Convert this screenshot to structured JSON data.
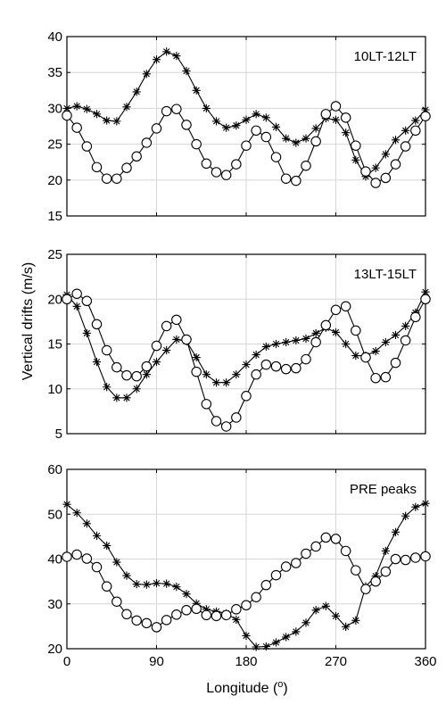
{
  "figure": {
    "ylabel": "Vertical drifts (m/s)",
    "xlabel_prefix": "Longitude (",
    "xlabel_sup": "o",
    "xlabel_suffix": ")"
  },
  "chart_data": [
    {
      "type": "line",
      "panel_label": "10LT-12LT",
      "xlim": [
        0,
        360
      ],
      "ylim": [
        15,
        40
      ],
      "xticks": [
        0,
        90,
        180,
        270,
        360
      ],
      "yticks": [
        15,
        20,
        25,
        30,
        35,
        40
      ],
      "grid": true,
      "x": [
        0,
        10,
        20,
        30,
        40,
        50,
        60,
        70,
        80,
        90,
        100,
        110,
        120,
        130,
        140,
        150,
        160,
        170,
        180,
        190,
        200,
        210,
        220,
        230,
        240,
        250,
        260,
        270,
        280,
        290,
        300,
        310,
        320,
        330,
        340,
        350,
        360
      ],
      "series": [
        {
          "marker": "star",
          "values": [
            30.0,
            30.3,
            29.9,
            29.2,
            28.3,
            28.2,
            30.2,
            32.3,
            34.8,
            36.8,
            37.9,
            37.3,
            35.2,
            32.5,
            30.0,
            28.2,
            27.3,
            27.6,
            28.4,
            29.2,
            28.7,
            27.4,
            25.8,
            25.2,
            25.8,
            27.2,
            28.6,
            28.4,
            26.6,
            22.8,
            20.5,
            21.7,
            23.6,
            25.6,
            26.9,
            28.3,
            29.8
          ]
        },
        {
          "marker": "circle",
          "values": [
            29.0,
            27.3,
            24.7,
            21.8,
            20.2,
            20.2,
            21.7,
            23.3,
            25.2,
            27.2,
            29.6,
            29.9,
            27.7,
            25.0,
            22.3,
            21.1,
            20.7,
            22.2,
            24.8,
            26.9,
            26.0,
            23.2,
            20.2,
            19.9,
            22.0,
            25.4,
            29.2,
            30.3,
            28.7,
            24.8,
            21.2,
            19.6,
            20.3,
            22.2,
            24.7,
            26.9,
            28.9
          ]
        }
      ]
    },
    {
      "type": "line",
      "panel_label": "13LT-15LT",
      "xlim": [
        0,
        360
      ],
      "ylim": [
        5,
        25
      ],
      "xticks": [
        0,
        90,
        180,
        270,
        360
      ],
      "yticks": [
        5,
        10,
        15,
        20,
        25
      ],
      "grid": true,
      "x": [
        0,
        10,
        20,
        30,
        40,
        50,
        60,
        70,
        80,
        90,
        100,
        110,
        120,
        130,
        140,
        150,
        160,
        170,
        180,
        190,
        200,
        210,
        220,
        230,
        240,
        250,
        260,
        270,
        280,
        290,
        300,
        310,
        320,
        330,
        340,
        350,
        360
      ],
      "series": [
        {
          "marker": "star",
          "values": [
            20.5,
            19.2,
            16.2,
            13.0,
            10.2,
            9.0,
            9.0,
            10.0,
            11.6,
            13.0,
            14.3,
            15.5,
            15.3,
            13.5,
            11.6,
            10.7,
            10.7,
            11.6,
            12.7,
            13.8,
            14.7,
            15.0,
            15.2,
            15.4,
            15.6,
            16.2,
            16.8,
            16.3,
            15.0,
            13.7,
            13.7,
            14.2,
            15.2,
            16.0,
            17.0,
            18.5,
            20.8
          ]
        },
        {
          "marker": "circle",
          "values": [
            20.0,
            20.6,
            19.8,
            17.2,
            14.3,
            12.4,
            11.5,
            11.4,
            12.5,
            14.8,
            17.0,
            17.7,
            15.5,
            11.9,
            8.3,
            6.4,
            5.8,
            6.8,
            9.2,
            11.6,
            12.7,
            12.5,
            12.2,
            12.3,
            13.3,
            15.2,
            17.1,
            18.8,
            19.2,
            16.5,
            13.5,
            11.2,
            11.3,
            12.9,
            15.4,
            18.0,
            20.0
          ]
        }
      ]
    },
    {
      "type": "line",
      "panel_label": "PRE peaks",
      "xlim": [
        0,
        360
      ],
      "ylim": [
        20,
        60
      ],
      "xticks": [
        0,
        90,
        180,
        270,
        360
      ],
      "yticks": [
        20,
        30,
        40,
        50,
        60
      ],
      "grid": true,
      "x": [
        0,
        10,
        20,
        30,
        40,
        50,
        60,
        70,
        80,
        90,
        100,
        110,
        120,
        130,
        140,
        150,
        160,
        170,
        180,
        190,
        200,
        210,
        220,
        230,
        240,
        250,
        260,
        270,
        280,
        290,
        300,
        310,
        320,
        330,
        340,
        350,
        360
      ],
      "series": [
        {
          "marker": "star",
          "values": [
            52.2,
            50.3,
            47.9,
            45.2,
            43.0,
            39.3,
            36.3,
            34.4,
            34.3,
            34.6,
            34.5,
            33.8,
            32.2,
            30.1,
            28.8,
            28.3,
            27.9,
            26.5,
            22.9,
            20.4,
            20.5,
            21.4,
            22.6,
            23.8,
            25.8,
            28.6,
            29.5,
            27.3,
            24.9,
            26.3,
            33.9,
            36.2,
            41.8,
            46.0,
            49.6,
            51.6,
            52.4
          ]
        },
        {
          "marker": "circle",
          "values": [
            40.5,
            41.0,
            40.1,
            38.2,
            33.9,
            30.5,
            27.7,
            26.3,
            25.7,
            24.8,
            26.4,
            27.6,
            28.6,
            28.9,
            27.5,
            27.3,
            27.5,
            28.8,
            29.7,
            31.5,
            34.2,
            36.4,
            38.3,
            39.1,
            41.2,
            42.8,
            44.8,
            44.5,
            41.8,
            37.5,
            33.3,
            35.0,
            37.2,
            40.0,
            39.8,
            40.3,
            40.6
          ]
        }
      ]
    }
  ]
}
